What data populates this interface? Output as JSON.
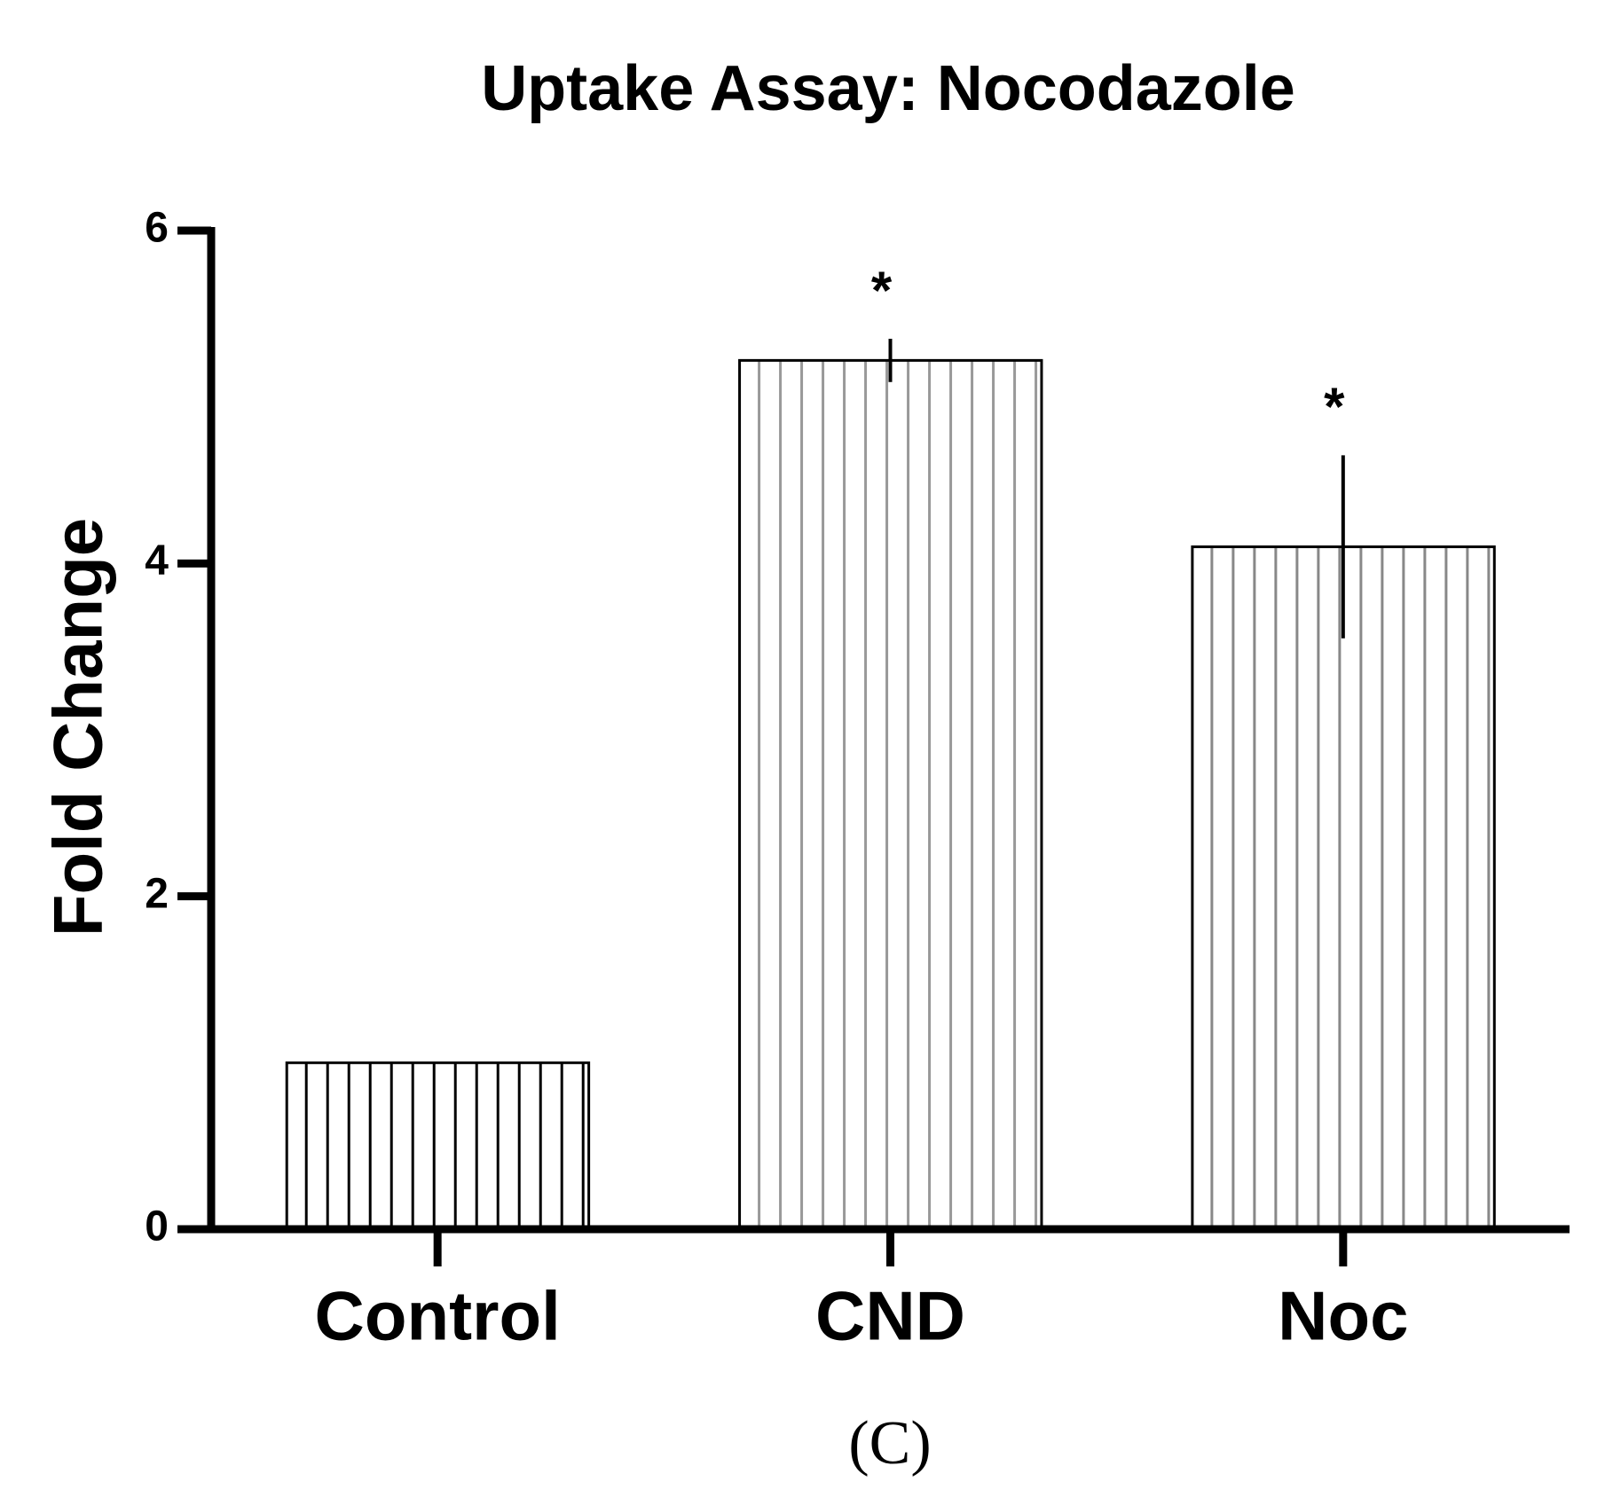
{
  "chart_data": {
    "type": "bar",
    "title": "Uptake Assay: Nocodazole",
    "y_label": "Fold Change",
    "categories": [
      "Control",
      "CND",
      "Noc"
    ],
    "values": [
      1.0,
      5.22,
      4.1
    ],
    "errors": [
      null,
      0.13,
      0.55
    ],
    "significance": [
      null,
      "*",
      "*"
    ],
    "colors": [
      "#000000",
      "#999999",
      "#888888"
    ],
    "ylim": [
      0,
      6
    ],
    "yticks": [
      0,
      2,
      4,
      6
    ],
    "grid": false,
    "caption": "(C)"
  }
}
